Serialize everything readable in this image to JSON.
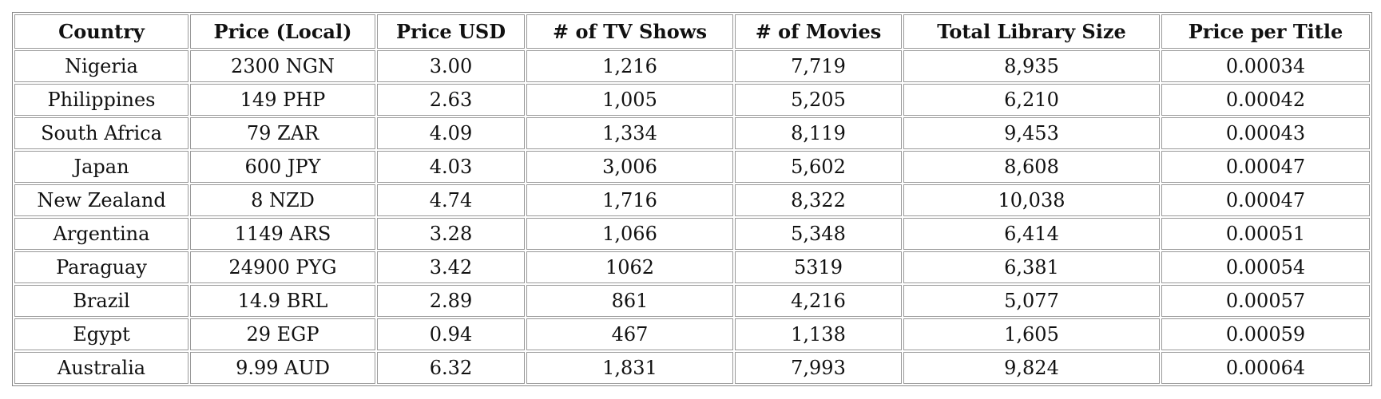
{
  "table": {
    "header": [
      "Country",
      "Price (Local)",
      "Price USD",
      "# of TV Shows",
      "# of Movies",
      "Total Library Size",
      "Price per Title"
    ],
    "rows": [
      [
        "Nigeria",
        "2300 NGN",
        "3.00",
        "1,216",
        "7,719",
        "8,935",
        "0.00034"
      ],
      [
        "Philippines",
        "149 PHP",
        "2.63",
        "1,005",
        "5,205",
        "6,210",
        "0.00042"
      ],
      [
        "South Africa",
        "79 ZAR",
        "4.09",
        "1,334",
        "8,119",
        "9,453",
        "0.00043"
      ],
      [
        "Japan",
        "600 JPY",
        "4.03",
        "3,006",
        "5,602",
        "8,608",
        "0.00047"
      ],
      [
        "New Zealand",
        "8 NZD",
        "4.74",
        "1,716",
        "8,322",
        "10,038",
        "0.00047"
      ],
      [
        "Argentina",
        "1149 ARS",
        "3.28",
        "1,066",
        "5,348",
        "6,414",
        "0.00051"
      ],
      [
        "Paraguay",
        "24900 PYG",
        "3.42",
        "1062",
        "5319",
        "6,381",
        "0.00054"
      ],
      [
        "Brazil",
        "14.9 BRL",
        "2.89",
        "861",
        "4,216",
        "5,077",
        "0.00057"
      ],
      [
        "Egypt",
        "29 EGP",
        "0.94",
        "467",
        "1,138",
        "1,605",
        "0.00059"
      ],
      [
        "Australia",
        "9.99 AUD",
        "6.32",
        "1,831",
        "7,993",
        "9,824",
        "0.00064"
      ]
    ]
  }
}
